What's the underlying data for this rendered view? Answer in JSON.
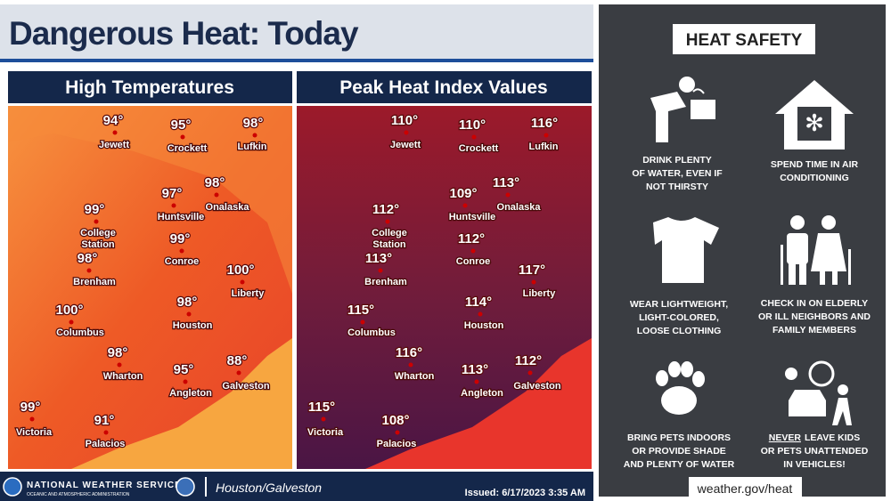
{
  "header": {
    "title": "Dangerous Heat: Today"
  },
  "panels": [
    {
      "title": "High Temperatures",
      "cities": [
        {
          "name": "Jewett",
          "temp": "94°"
        },
        {
          "name": "Crockett",
          "temp": "95°"
        },
        {
          "name": "Lufkin",
          "temp": "98°"
        },
        {
          "name": "Huntsville",
          "temp": "97°"
        },
        {
          "name": "Onalaska",
          "temp": "98°"
        },
        {
          "name": "College Station",
          "temp": "99°"
        },
        {
          "name": "Conroe",
          "temp": "99°"
        },
        {
          "name": "Brenham",
          "temp": "98°"
        },
        {
          "name": "Liberty",
          "temp": "100°"
        },
        {
          "name": "Columbus",
          "temp": "100°"
        },
        {
          "name": "Houston",
          "temp": "98°"
        },
        {
          "name": "Wharton",
          "temp": "98°"
        },
        {
          "name": "Angleton",
          "temp": "95°"
        },
        {
          "name": "Galveston",
          "temp": "88°"
        },
        {
          "name": "Victoria",
          "temp": "99°"
        },
        {
          "name": "Palacios",
          "temp": "91°"
        }
      ]
    },
    {
      "title": "Peak Heat Index Values",
      "cities": [
        {
          "name": "Jewett",
          "temp": "110°"
        },
        {
          "name": "Crockett",
          "temp": "110°"
        },
        {
          "name": "Lufkin",
          "temp": "116°"
        },
        {
          "name": "Huntsville",
          "temp": "109°"
        },
        {
          "name": "Onalaska",
          "temp": "113°"
        },
        {
          "name": "College Station",
          "temp": "112°"
        },
        {
          "name": "Conroe",
          "temp": "112°"
        },
        {
          "name": "Brenham",
          "temp": "113°"
        },
        {
          "name": "Liberty",
          "temp": "117°"
        },
        {
          "name": "Columbus",
          "temp": "115°"
        },
        {
          "name": "Houston",
          "temp": "114°"
        },
        {
          "name": "Wharton",
          "temp": "116°"
        },
        {
          "name": "Angleton",
          "temp": "113°"
        },
        {
          "name": "Galveston",
          "temp": "112°"
        },
        {
          "name": "Victoria",
          "temp": "115°"
        },
        {
          "name": "Palacios",
          "temp": "108°"
        }
      ]
    }
  ],
  "safety": {
    "title": "HEAT SAFETY",
    "items": [
      {
        "lines": [
          "DRINK PLENTY",
          "OF WATER, EVEN IF",
          "NOT THIRSTY"
        ]
      },
      {
        "lines": [
          "SPEND TIME IN AIR",
          "CONDITIONING"
        ]
      },
      {
        "lines": [
          "WEAR LIGHTWEIGHT,",
          "LIGHT-COLORED,",
          "LOOSE CLOTHING"
        ]
      },
      {
        "lines": [
          "CHECK IN ON ELDERLY",
          "OR ILL NEIGHBORS AND",
          "FAMILY MEMBERS"
        ]
      },
      {
        "lines": [
          "BRING PETS INDOORS",
          "OR PROVIDE SHADE",
          "AND PLENTY OF WATER"
        ]
      },
      {
        "emphasis": "NEVER",
        "lines": [
          "LEAVE KIDS",
          "OR PETS UNATTENDED",
          "IN VEHICLES!"
        ]
      }
    ],
    "link": "weather.gov/heat"
  },
  "footer": {
    "agency": "NATIONAL WEATHER SERVICE",
    "sub": "OCEANIC AND ATMOSPHERIC ADMINISTRATION",
    "office": "Houston/Galveston",
    "issued": "Issued: 6/17/2023 3:35 AM"
  }
}
